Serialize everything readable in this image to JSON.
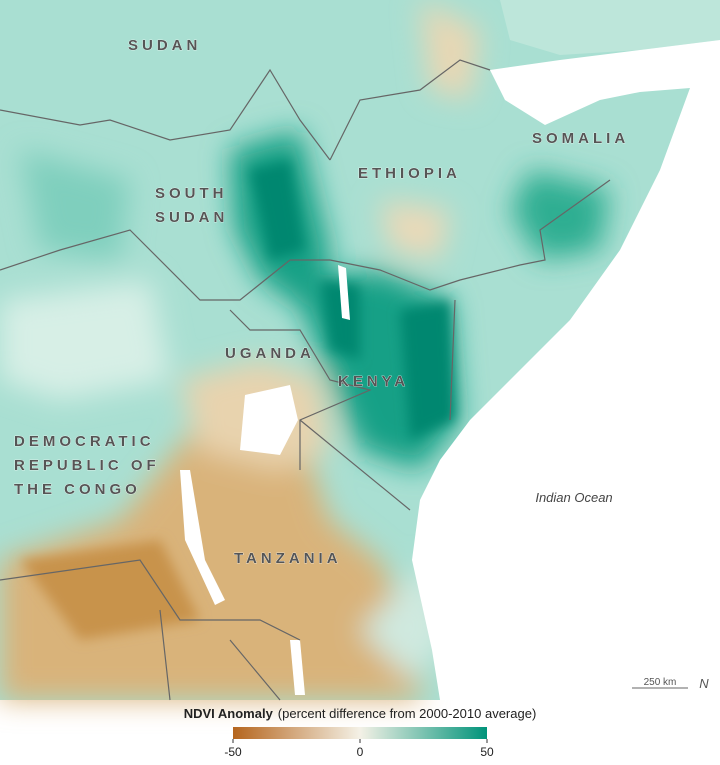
{
  "map": {
    "labels": [
      [
        "SUDAN"
      ],
      [
        "SOUTH",
        "SUDAN"
      ],
      [
        "ETHIOPIA"
      ],
      [
        "SOMALIA"
      ],
      [
        "UGANDA"
      ],
      [
        "KENYA"
      ],
      [
        "DEMOCRATIC",
        "REPUBLIC OF",
        "THE CONGO"
      ],
      [
        "TANZANIA"
      ]
    ],
    "ocean_label": "Indian Ocean",
    "scale_bar": "250 km",
    "north": "N"
  },
  "legend": {
    "title": "NDVI Anomaly",
    "subtitle": "(percent difference from 2000-2010 average)",
    "lim": [
      -50,
      50
    ],
    "ticks": [
      -50,
      0,
      50
    ],
    "colors": [
      "#b5651d",
      "#f4f1e6",
      "#00937a"
    ]
  }
}
